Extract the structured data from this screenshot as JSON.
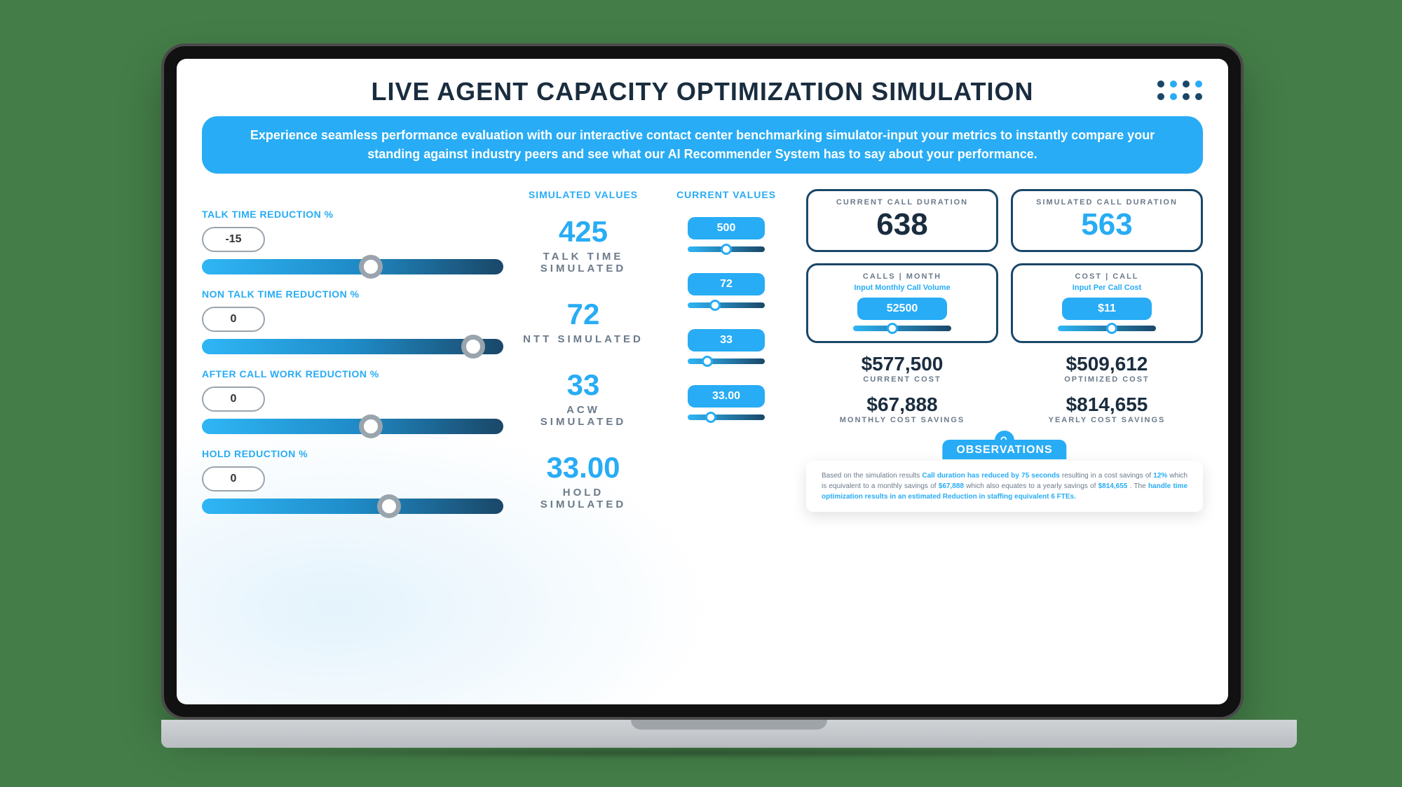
{
  "colors": {
    "accent": "#28acf5",
    "accent_dark": "#1a7db8",
    "nav_dark": "#1a4768",
    "text_dark": "#1a2d3f",
    "text_gray": "#6b7a8a",
    "thumb_gray": "#9aa4ad",
    "stage_bg": "#447d48"
  },
  "header": {
    "title": "LIVE AGENT CAPACITY OPTIMIZATION SIMULATION",
    "intro": "Experience seamless performance evaluation with our interactive contact center benchmarking simulator-input your metrics to instantly compare your standing against industry peers and see what our AI Recommender System has to say about your performance."
  },
  "logo": {
    "dot_colors": [
      "#1a4768",
      "#28acf5",
      "#1a4768",
      "#28acf5",
      "#1a4768",
      "#28acf5",
      "#1a4768",
      "#1a4768"
    ]
  },
  "column_headings": {
    "simulated": "SIMULATED VALUES",
    "current": "CURRENT VALUES"
  },
  "sliders": [
    {
      "key": "talk_time",
      "label": "TALK TIME REDUCTION %",
      "value": "-15",
      "thumb_pct": 56,
      "sim_value": "425",
      "sim_caption": "TALK TIME SIMULATED",
      "cur_value": "500",
      "cur_thumb_pct": 50
    },
    {
      "key": "ntt",
      "label": "NON TALK TIME REDUCTION %",
      "value": "0",
      "thumb_pct": 90,
      "sim_value": "72",
      "sim_caption": "NTT SIMULATED",
      "cur_value": "72",
      "cur_thumb_pct": 35
    },
    {
      "key": "acw",
      "label": "AFTER CALL WORK REDUCTION %",
      "value": "0",
      "thumb_pct": 56,
      "sim_value": "33",
      "sim_caption": "ACW SIMULATED",
      "cur_value": "33",
      "cur_thumb_pct": 25
    },
    {
      "key": "hold",
      "label": "HOLD REDUCTION %",
      "value": "0",
      "thumb_pct": 62,
      "sim_value": "33.00",
      "sim_caption": "HOLD  SIMULATED",
      "cur_value": "33.00",
      "cur_thumb_pct": 30
    }
  ],
  "cards": {
    "current_duration": {
      "title": "CURRENT CALL DURATION",
      "value": "638",
      "value_color": "text_dark"
    },
    "simulated_duration": {
      "title": "SIMULATED CALL DURATION",
      "value": "563",
      "value_color": "accent"
    },
    "calls_month": {
      "title": "CALLS | MONTH",
      "sub": "Input Monthly Call Volume",
      "pill": "52500",
      "thumb_pct": 40
    },
    "cost_call": {
      "title": "COST | CALL",
      "sub": "Input Per Call Cost",
      "pill": "$11",
      "thumb_pct": 55
    }
  },
  "costs": [
    {
      "value": "$577,500",
      "caption": "CURRENT COST"
    },
    {
      "value": "$509,612",
      "caption": "OPTIMIZED COST"
    },
    {
      "value": "$67,888",
      "caption": "MONTHLY COST SAVINGS"
    },
    {
      "value": "$814,655",
      "caption": "YEARLY COST SAVINGS"
    }
  ],
  "observations": {
    "tab": "OBSERVATIONS",
    "text_pre": "Based on the simulation results ",
    "hl1": "Call duration has reduced by 75 seconds",
    "text_mid1": " resulting in a cost savings of ",
    "hl2": "12%",
    "text_mid2": " which is equivalent to a monthly savings of ",
    "hl3": "$67,888",
    "text_mid3": " which also equates to a yearly savings of ",
    "hl4": "$814,655",
    "text_mid4": ". The ",
    "hl5": "handle time optimization results in an estimated Reduction in staffing equivalent 6 FTEs.",
    "text_post": ""
  }
}
